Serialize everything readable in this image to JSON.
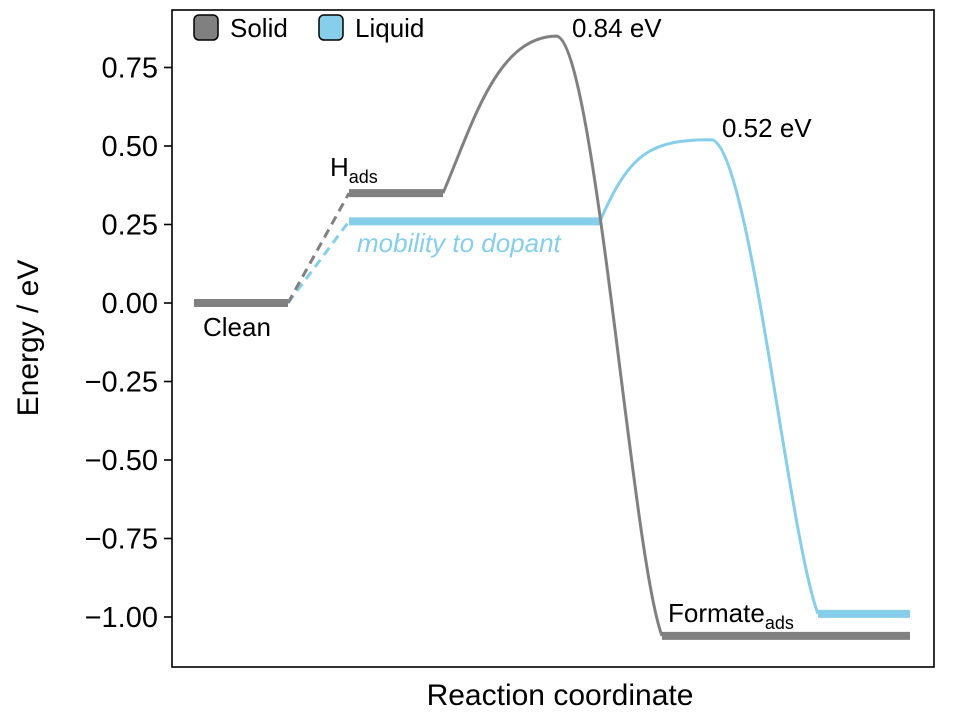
{
  "chart_data": {
    "type": "line",
    "title": "",
    "xlabel": "Reaction coordinate",
    "ylabel": "Energy / eV",
    "ylim": [
      -1.17,
      0.92
    ],
    "yticks": [
      0.75,
      0.5,
      0.25,
      0.0,
      -0.25,
      -0.5,
      -0.75,
      -1.0
    ],
    "ytick_labels": [
      "0.75",
      "0.50",
      "0.25",
      "0.00",
      "−0.25",
      "−0.50",
      "−0.75",
      "−1.00"
    ],
    "grid": false,
    "legend": {
      "placement": "top-left",
      "entries": [
        {
          "label": "Solid",
          "color": "#808080"
        },
        {
          "label": "Liquid",
          "color": "#87CEEB"
        }
      ]
    },
    "series": [
      {
        "name": "Solid",
        "color": "#808080",
        "states": [
          {
            "label": "Clean",
            "energy": 0.0
          },
          {
            "label": "H",
            "label_sub": "ads",
            "energy": 0.35
          },
          {
            "label": "Formate",
            "label_sub": "ads",
            "energy": -1.06
          }
        ],
        "barrier": {
          "label": "0.84 eV",
          "peak_energy": 0.85
        }
      },
      {
        "name": "Liquid",
        "color": "#87CEEB",
        "states": [
          {
            "label": "Clean",
            "energy": 0.0
          },
          {
            "label": "H",
            "label_sub": "ads",
            "energy": 0.26
          },
          {
            "label": "Formate",
            "label_sub": "ads",
            "energy": -0.99
          }
        ],
        "barrier": {
          "label": "0.52 eV",
          "peak_energy": 0.52
        }
      }
    ],
    "annotations": {
      "clean": "Clean",
      "hads_main": "H",
      "hads_sub": "ads",
      "formate_main": "Formate",
      "formate_sub": "ads",
      "solid_barrier": "0.84 eV",
      "liquid_barrier": "0.52 eV",
      "liquid_note": "mobility to dopant"
    }
  }
}
